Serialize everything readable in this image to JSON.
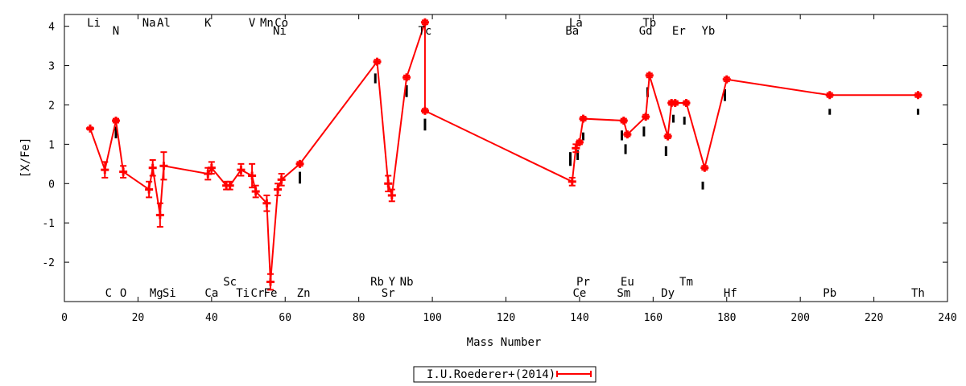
{
  "chart_data": {
    "type": "line",
    "xlabel": "Mass Number",
    "ylabel": "[X/Fe]",
    "xlim": [
      0,
      240
    ],
    "ylim": [
      -3,
      4.3
    ],
    "x_ticks": [
      0,
      20,
      40,
      60,
      80,
      100,
      120,
      140,
      160,
      180,
      200,
      220,
      240
    ],
    "y_ticks": [
      -2,
      -1,
      0,
      1,
      2,
      3,
      4
    ],
    "grid": false,
    "legend_position": "bottom-center",
    "colors": {
      "series": "#ff0000",
      "isotopes": "#000000"
    },
    "series": [
      {
        "name": "I.U.Roederer+(2014)",
        "x": [
          7,
          11,
          14,
          16,
          23,
          24,
          26,
          27,
          39,
          40,
          44,
          45,
          48,
          51,
          52,
          55,
          56,
          58,
          59,
          64,
          85,
          88,
          89,
          93,
          98,
          98,
          138,
          139,
          140,
          141,
          152,
          153,
          158,
          159,
          164,
          165,
          166,
          169,
          174,
          180,
          208,
          232
        ],
        "y": [
          1.4,
          0.35,
          1.6,
          0.3,
          -0.15,
          0.4,
          -0.8,
          0.45,
          0.25,
          0.4,
          -0.05,
          -0.05,
          0.35,
          0.2,
          -0.2,
          -0.5,
          -2.5,
          -0.15,
          0.1,
          0.5,
          3.1,
          0.0,
          -0.3,
          2.7,
          4.1,
          1.85,
          0.05,
          0.9,
          1.05,
          1.65,
          1.6,
          1.25,
          1.7,
          2.75,
          1.2,
          2.05,
          2.05,
          2.05,
          0.4,
          2.65,
          2.25,
          2.25
        ],
        "errors": [
          0.03,
          0.2,
          0.05,
          0.15,
          0.2,
          0.2,
          0.3,
          0.35,
          0.15,
          0.15,
          0.1,
          0.1,
          0.15,
          0.3,
          0.15,
          0.2,
          0.2,
          0.15,
          0.15,
          0.05,
          0.05,
          0.2,
          0.15,
          0.05,
          0.05,
          0.05,
          0.1,
          0.1,
          0.05,
          0.05,
          0.05,
          0.05,
          0.05,
          0.05,
          0.05,
          0.05,
          0.05,
          0.05,
          0.05,
          0.05,
          0.05,
          0.05
        ]
      }
    ],
    "isotope_markers": [
      {
        "x": 14,
        "y_top": 1.45,
        "y_bottom": 1.15
      },
      {
        "x": 64,
        "y_top": 0.3,
        "y_bottom": 0.0
      },
      {
        "x": 84.5,
        "y_top": 2.8,
        "y_bottom": 2.55
      },
      {
        "x": 93,
        "y_top": 2.5,
        "y_bottom": 2.2
      },
      {
        "x": 98,
        "y_top": 1.65,
        "y_bottom": 1.35
      },
      {
        "x": 137.5,
        "y_top": 0.8,
        "y_bottom": 0.45
      },
      {
        "x": 139.5,
        "y_top": 0.85,
        "y_bottom": 0.6
      },
      {
        "x": 141,
        "y_top": 1.3,
        "y_bottom": 1.1
      },
      {
        "x": 151.5,
        "y_top": 1.35,
        "y_bottom": 1.1
      },
      {
        "x": 152.5,
        "y_top": 1.0,
        "y_bottom": 0.75
      },
      {
        "x": 157.5,
        "y_top": 1.45,
        "y_bottom": 1.2
      },
      {
        "x": 158.5,
        "y_top": 2.45,
        "y_bottom": 2.2
      },
      {
        "x": 163.5,
        "y_top": 0.95,
        "y_bottom": 0.7
      },
      {
        "x": 165.5,
        "y_top": 1.75,
        "y_bottom": 1.55
      },
      {
        "x": 168.5,
        "y_top": 1.7,
        "y_bottom": 1.5
      },
      {
        "x": 173.5,
        "y_top": 0.05,
        "y_bottom": -0.15
      },
      {
        "x": 179.5,
        "y_top": 2.4,
        "y_bottom": 2.1
      },
      {
        "x": 208,
        "y_top": 1.9,
        "y_bottom": 1.75
      },
      {
        "x": 232,
        "y_top": 1.9,
        "y_bottom": 1.75
      }
    ],
    "element_labels": [
      {
        "text": "Li",
        "x": 8,
        "row": "top1"
      },
      {
        "text": "N",
        "x": 14,
        "row": "top2"
      },
      {
        "text": "Na",
        "x": 23,
        "row": "top1"
      },
      {
        "text": "Al",
        "x": 27,
        "row": "top1"
      },
      {
        "text": "K",
        "x": 39,
        "row": "top1"
      },
      {
        "text": "V",
        "x": 51,
        "row": "top1"
      },
      {
        "text": "Mn",
        "x": 55,
        "row": "top1"
      },
      {
        "text": "Co",
        "x": 59,
        "row": "top1"
      },
      {
        "text": "Ni",
        "x": 58.5,
        "row": "top2"
      },
      {
        "text": "Tc",
        "x": 98,
        "row": "top2"
      },
      {
        "text": "La",
        "x": 139,
        "row": "top1"
      },
      {
        "text": "Ba",
        "x": 138,
        "row": "top2"
      },
      {
        "text": "Tb",
        "x": 159,
        "row": "top1"
      },
      {
        "text": "Gd",
        "x": 158,
        "row": "top2"
      },
      {
        "text": "Er",
        "x": 167,
        "row": "top2"
      },
      {
        "text": "Yb",
        "x": 175,
        "row": "top2"
      },
      {
        "text": "Sc",
        "x": 45,
        "row": "bot1"
      },
      {
        "text": "Rb",
        "x": 85,
        "row": "bot1"
      },
      {
        "text": "Y",
        "x": 89,
        "row": "bot1"
      },
      {
        "text": "Nb",
        "x": 93,
        "row": "bot1"
      },
      {
        "text": "Pr",
        "x": 141,
        "row": "bot1"
      },
      {
        "text": "Eu",
        "x": 153,
        "row": "bot1"
      },
      {
        "text": "Tm",
        "x": 169,
        "row": "bot1"
      },
      {
        "text": "C",
        "x": 12,
        "row": "bot2"
      },
      {
        "text": "O",
        "x": 16,
        "row": "bot2"
      },
      {
        "text": "Mg",
        "x": 25,
        "row": "bot2"
      },
      {
        "text": "Si",
        "x": 28.5,
        "row": "bot2"
      },
      {
        "text": "Ca",
        "x": 40,
        "row": "bot2"
      },
      {
        "text": "Ti",
        "x": 48.5,
        "row": "bot2"
      },
      {
        "text": "Cr",
        "x": 52.5,
        "row": "bot2"
      },
      {
        "text": "Fe",
        "x": 56,
        "row": "bot2"
      },
      {
        "text": "Zn",
        "x": 65,
        "row": "bot2"
      },
      {
        "text": "Sr",
        "x": 88,
        "row": "bot2"
      },
      {
        "text": "Ce",
        "x": 140,
        "row": "bot2"
      },
      {
        "text": "Sm",
        "x": 152,
        "row": "bot2"
      },
      {
        "text": "Dy",
        "x": 164,
        "row": "bot2"
      },
      {
        "text": "Hf",
        "x": 181,
        "row": "bot2"
      },
      {
        "text": "Pb",
        "x": 208,
        "row": "bot2"
      },
      {
        "text": "Th",
        "x": 232,
        "row": "bot2"
      }
    ]
  }
}
